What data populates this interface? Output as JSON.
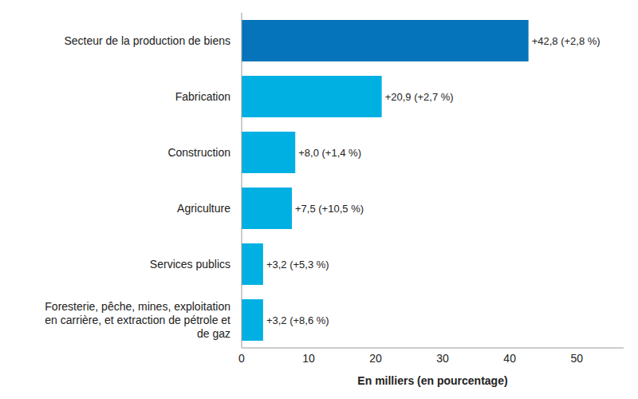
{
  "chart_data": {
    "type": "bar",
    "orientation": "horizontal",
    "x_label": "En milliers (en pourcentage)",
    "categories": [
      "Secteur de la production de biens",
      "Fabrication",
      "Construction",
      "Agriculture",
      "Services publics",
      "Foresterie, pêche, mines, exploitation en carrière, et extraction de pétrole et de gaz"
    ],
    "values": [
      42.8,
      20.9,
      8.0,
      7.5,
      3.2,
      3.2
    ],
    "value_labels": [
      "+42,8 (+2,8 %)",
      "+20,9 (+2,7 %)",
      "+8,0 (+1,4 %)",
      "+7,5 (+10,5 %)",
      "+3,2 (+5,3 %)",
      "+3,2 (+8,6 %)"
    ],
    "colors": [
      "#0574ba",
      "#00b0e3",
      "#00b0e3",
      "#00b0e3",
      "#00b0e3",
      "#00b0e3"
    ],
    "xlim": [
      0,
      57
    ],
    "xticks": [
      0,
      10,
      20,
      30,
      40,
      50
    ],
    "grid": false,
    "data_labels": true
  }
}
